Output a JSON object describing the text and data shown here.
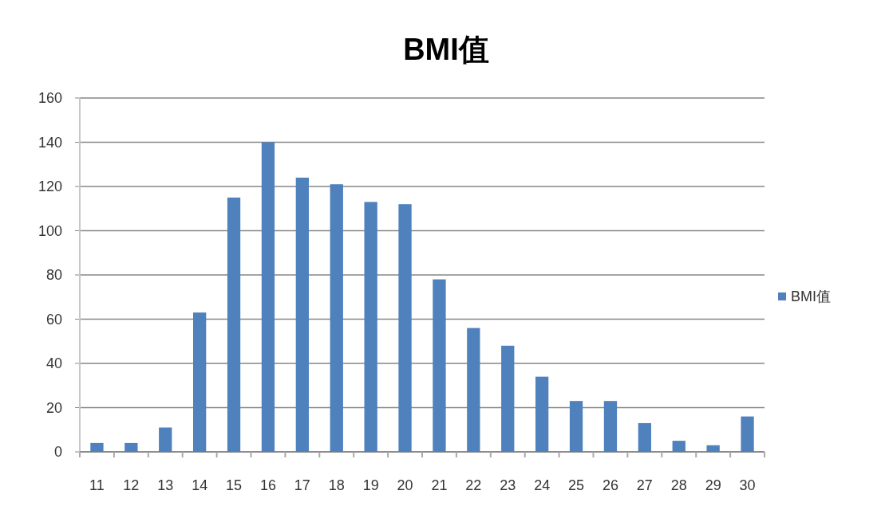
{
  "chart_data": {
    "type": "bar",
    "title": "BMI值",
    "categories": [
      "11",
      "12",
      "13",
      "14",
      "15",
      "16",
      "17",
      "18",
      "19",
      "20",
      "21",
      "22",
      "23",
      "24",
      "25",
      "26",
      "27",
      "28",
      "29",
      "30"
    ],
    "series": [
      {
        "name": "BMI值",
        "color": "#4f81bd",
        "values": [
          4,
          4,
          11,
          63,
          115,
          140,
          124,
          121,
          113,
          112,
          78,
          56,
          48,
          34,
          23,
          23,
          13,
          5,
          3,
          16
        ]
      }
    ],
    "ylim": [
      0,
      160
    ],
    "yticks": [
      0,
      20,
      40,
      60,
      80,
      100,
      120,
      140,
      160
    ],
    "grid": "y",
    "legend": "right"
  }
}
